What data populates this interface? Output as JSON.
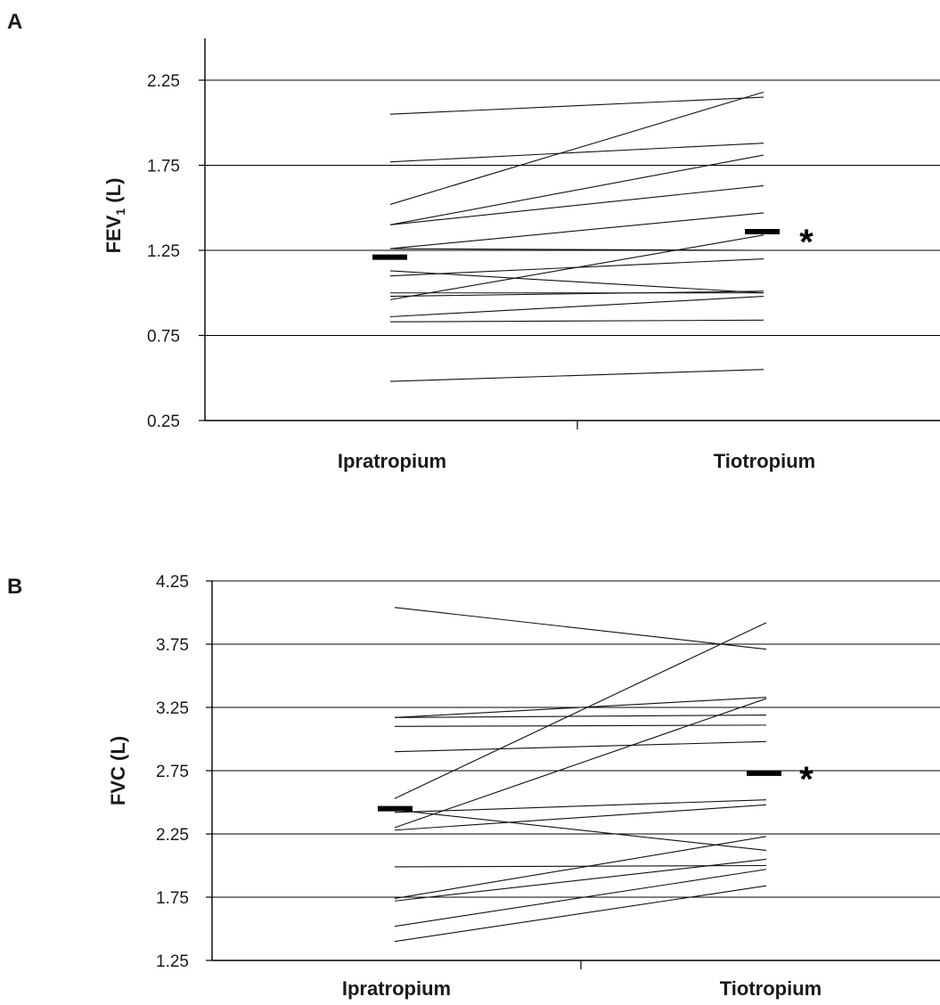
{
  "chart_data": [
    {
      "panel": "A",
      "type": "line",
      "ylabel_main": "FEV",
      "ylabel_sub": "1",
      "ylabel_tail": " (L)",
      "yticks": [
        "0.25",
        "0.75",
        "1.25",
        "1.75",
        "2.25"
      ],
      "ylim": [
        0.25,
        2.25
      ],
      "grid": true,
      "categories": [
        "Ipratropium",
        "Tiotropium"
      ],
      "pairs": [
        [
          2.05,
          2.15
        ],
        [
          1.77,
          1.88
        ],
        [
          1.52,
          2.18
        ],
        [
          1.4,
          1.81
        ],
        [
          1.4,
          1.63
        ],
        [
          1.26,
          1.47
        ],
        [
          1.26,
          1.25
        ],
        [
          1.13,
          1.0
        ],
        [
          1.1,
          1.2
        ],
        [
          1.0,
          1.0
        ],
        [
          0.96,
          1.34
        ],
        [
          0.98,
          1.01
        ],
        [
          0.86,
          0.98
        ],
        [
          0.83,
          0.84
        ],
        [
          0.48,
          0.55
        ]
      ],
      "means": [
        1.21,
        1.36
      ],
      "significance": "*"
    },
    {
      "panel": "B",
      "type": "line",
      "ylabel": "FVC (L)",
      "yticks": [
        "1.25",
        "1.75",
        "2.25",
        "2.75",
        "3.25",
        "3.75",
        "4.25"
      ],
      "ylim": [
        1.25,
        4.25
      ],
      "grid": true,
      "categories": [
        "Ipratropium",
        "Tiotropium"
      ],
      "pairs": [
        [
          4.04,
          3.71
        ],
        [
          3.17,
          3.33
        ],
        [
          3.17,
          3.19
        ],
        [
          3.1,
          3.11
        ],
        [
          2.9,
          2.98
        ],
        [
          2.53,
          3.92
        ],
        [
          2.3,
          3.32
        ],
        [
          2.42,
          2.52
        ],
        [
          2.28,
          2.48
        ],
        [
          2.44,
          2.12
        ],
        [
          1.99,
          2.0
        ],
        [
          1.74,
          2.23
        ],
        [
          1.72,
          2.05
        ],
        [
          1.52,
          1.97
        ],
        [
          1.4,
          1.84
        ]
      ],
      "means": [
        2.45,
        2.73
      ],
      "significance": "*"
    }
  ]
}
